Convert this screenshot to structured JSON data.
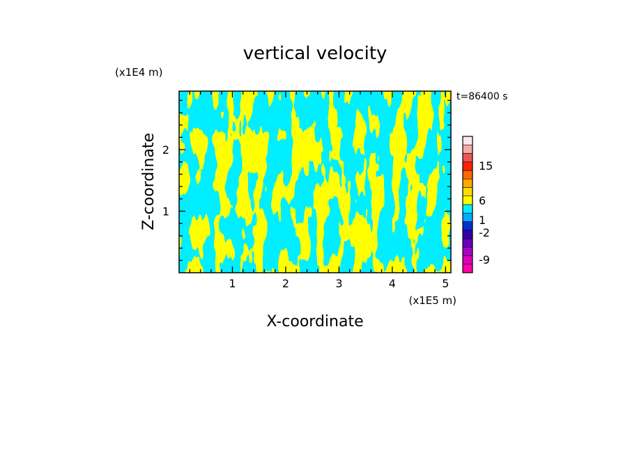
{
  "chart_data": {
    "type": "heatmap",
    "title": "vertical velocity",
    "xlabel": "X-coordinate",
    "ylabel": "Z-coordinate",
    "x_scale_label": "(x1E5 m)",
    "y_scale_label": "(x1E4 m)",
    "time_label": "t=86400 s",
    "xlim": [
      0,
      5.1
    ],
    "ylim": [
      0,
      2.95
    ],
    "x_ticks": [
      1,
      2,
      3,
      4,
      5
    ],
    "y_ticks": [
      1,
      2
    ],
    "x_tick_labels": [
      "1",
      "2",
      "3",
      "4",
      "5"
    ],
    "y_tick_labels": [
      "1",
      "2"
    ],
    "field_colors": {
      "positive": "#ffff00",
      "negative": "#00eeff"
    },
    "colorbar": {
      "levels": [
        {
          "color": "#ff00aa"
        },
        {
          "color": "#dd00bb"
        },
        {
          "color": "#aa00cc"
        },
        {
          "color": "#6600bb"
        },
        {
          "color": "#3300aa"
        },
        {
          "color": "#0033cc"
        },
        {
          "color": "#00aaff"
        },
        {
          "color": "#00eeff"
        },
        {
          "color": "#ffff00"
        },
        {
          "color": "#ffdd00"
        },
        {
          "color": "#ffaa00"
        },
        {
          "color": "#ff6600"
        },
        {
          "color": "#ff2200"
        },
        {
          "color": "#ee5555"
        },
        {
          "color": "#f5aaaa"
        },
        {
          "color": "#fde8e8"
        }
      ],
      "labels": [
        {
          "text": "15",
          "value": 15
        },
        {
          "text": "6",
          "value": 6
        },
        {
          "text": "1",
          "value": 1
        },
        {
          "text": "-2",
          "value": -2
        },
        {
          "text": "-9",
          "value": -9
        }
      ]
    }
  }
}
